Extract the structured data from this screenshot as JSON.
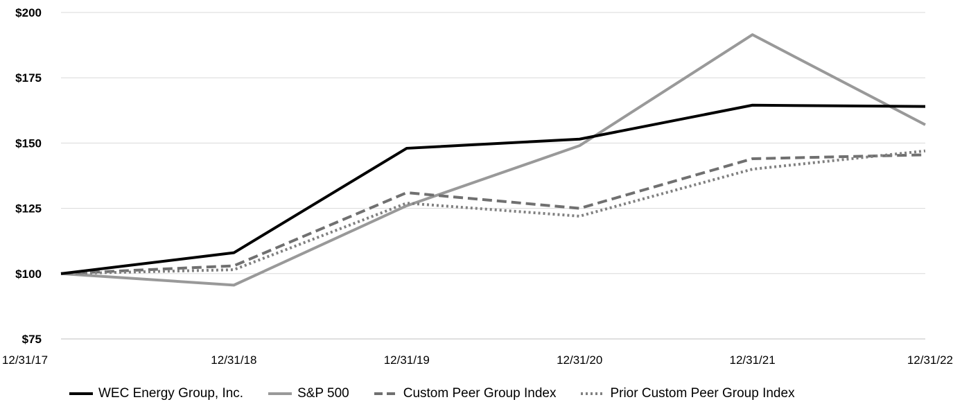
{
  "chart_data": {
    "type": "line",
    "categories": [
      "12/31/17",
      "12/31/18",
      "12/31/19",
      "12/31/20",
      "12/31/21",
      "12/31/22"
    ],
    "ylim": [
      75,
      200
    ],
    "yticks": [
      75,
      100,
      125,
      150,
      175,
      200
    ],
    "ytick_labels": [
      "$75",
      "$100",
      "$125",
      "$150",
      "$175",
      "$200"
    ],
    "grid": true,
    "legend_position": "bottom",
    "series": [
      {
        "name": "WEC Energy Group, Inc.",
        "values": [
          100,
          108,
          148,
          151.5,
          164.5,
          164
        ],
        "color": "#000000",
        "style": "solid"
      },
      {
        "name": "S&P 500",
        "values": [
          100,
          95.6,
          126,
          149,
          191.5,
          157
        ],
        "color": "#999999",
        "style": "solid"
      },
      {
        "name": "Custom Peer Group Index",
        "values": [
          100,
          103,
          131,
          125,
          144,
          145.5
        ],
        "color": "#707070",
        "style": "dashed"
      },
      {
        "name": "Prior Custom Peer Group Index",
        "values": [
          100,
          101.5,
          127,
          122,
          140,
          147
        ],
        "color": "#808080",
        "style": "dotted"
      }
    ]
  }
}
